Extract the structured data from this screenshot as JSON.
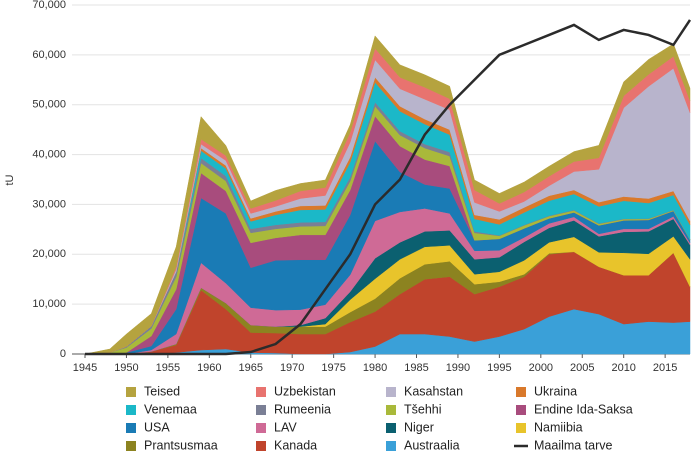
{
  "chart_data": {
    "type": "stacked-area",
    "ylabel": "tU",
    "x": [
      1945,
      1948,
      1950,
      1953,
      1956,
      1959,
      1962,
      1965,
      1968,
      1971,
      1974,
      1977,
      1980,
      1983,
      1986,
      1989,
      1992,
      1995,
      1998,
      2001,
      2004,
      2007,
      2010,
      2013,
      2016,
      2018
    ],
    "xlim": [
      1945,
      2018
    ],
    "xticks": [
      1945,
      1950,
      1955,
      1960,
      1965,
      1970,
      1975,
      1980,
      1985,
      1990,
      1995,
      2000,
      2005,
      2010,
      2015
    ],
    "ylim": [
      0,
      70000
    ],
    "yticks": [
      0,
      {
        "value": 10000,
        "label": "10,000"
      },
      {
        "value": 20000,
        "label": "20,000"
      },
      {
        "value": 30000,
        "label": "30,000"
      },
      {
        "value": 40000,
        "label": "40,000"
      },
      {
        "value": 50000,
        "label": "50,000"
      },
      {
        "value": 60000,
        "label": "60,000"
      },
      {
        "value": 70000,
        "label": "70,000"
      }
    ],
    "grid": true,
    "series": [
      {
        "name": "Austraalia",
        "color": "#3aa0d8",
        "values": [
          0,
          0,
          0,
          0,
          300,
          800,
          1000,
          300,
          200,
          0,
          0,
          400,
          1500,
          4000,
          4000,
          3500,
          2500,
          3500,
          5000,
          7500,
          9000,
          8000,
          6000,
          6500,
          6300,
          6500
        ]
      },
      {
        "name": "Kanada",
        "color": "#c0442c",
        "values": [
          0,
          0,
          0,
          500,
          1500,
          12000,
          8000,
          4000,
          4000,
          4000,
          4000,
          6000,
          7000,
          8000,
          11000,
          12000,
          9500,
          10000,
          10500,
          12500,
          11500,
          9500,
          9800,
          9300,
          14000,
          7000
        ]
      },
      {
        "name": "Prantsusmaa",
        "color": "#8c8320",
        "values": [
          0,
          0,
          0,
          0,
          200,
          500,
          1200,
          1500,
          1300,
          1500,
          1500,
          2000,
          2600,
          3200,
          3000,
          3100,
          2000,
          1000,
          500,
          200,
          0,
          0,
          0,
          0,
          0,
          0
        ]
      },
      {
        "name": "Namiibia",
        "color": "#e8c42b",
        "values": [
          0,
          0,
          0,
          0,
          0,
          0,
          0,
          0,
          0,
          0,
          500,
          2500,
          4000,
          3800,
          3500,
          3200,
          2000,
          2000,
          2800,
          2200,
          3000,
          2900,
          4500,
          4300,
          3300,
          5500
        ]
      },
      {
        "name": "Niger",
        "color": "#0b6070",
        "values": [
          0,
          0,
          0,
          0,
          0,
          0,
          0,
          0,
          0,
          300,
          1200,
          1600,
          4100,
          3400,
          3100,
          3000,
          3000,
          2900,
          3700,
          2900,
          3300,
          3200,
          4200,
          4500,
          3500,
          2900
        ]
      },
      {
        "name": "LAV",
        "color": "#cf6a96",
        "values": [
          0,
          0,
          0,
          300,
          2000,
          5000,
          4000,
          3500,
          3300,
          3100,
          2700,
          3400,
          7500,
          6100,
          4600,
          3400,
          1700,
          1400,
          900,
          900,
          700,
          500,
          600,
          500,
          500,
          400
        ]
      },
      {
        "name": "USA",
        "color": "#1a7bb5",
        "values": [
          0,
          0,
          300,
          800,
          5000,
          13000,
          14000,
          8000,
          10000,
          10000,
          9000,
          12000,
          16000,
          8000,
          4800,
          5000,
          2100,
          2300,
          1800,
          1000,
          900,
          1700,
          1700,
          1800,
          1100,
          600
        ]
      },
      {
        "name": "Endine Ida-Saksa",
        "color": "#a84c7d",
        "values": [
          0,
          0,
          0,
          2000,
          4000,
          5000,
          4500,
          5000,
          4500,
          5000,
          5000,
          5000,
          5000,
          5200,
          5000,
          4500,
          0,
          0,
          0,
          0,
          0,
          0,
          0,
          0,
          0,
          0
        ]
      },
      {
        "name": "Tšehhi",
        "color": "#a9b93a",
        "values": [
          0,
          300,
          1000,
          1500,
          2500,
          2000,
          2000,
          2000,
          1800,
          1700,
          1800,
          1800,
          2000,
          2200,
          2300,
          2000,
          1500,
          600,
          600,
          450,
          400,
          300,
          250,
          200,
          150,
          100
        ]
      },
      {
        "name": "Rumeenia",
        "color": "#7a7f95",
        "values": [
          0,
          0,
          200,
          500,
          1000,
          1000,
          1000,
          800,
          800,
          800,
          800,
          800,
          800,
          800,
          800,
          800,
          300,
          100,
          100,
          100,
          100,
          100,
          80,
          80,
          50,
          0
        ]
      },
      {
        "name": "Venemaa",
        "color": "#1bb8c8",
        "values": [
          0,
          0,
          0,
          0,
          0,
          1500,
          1500,
          1500,
          2000,
          2500,
          2500,
          3000,
          4000,
          4000,
          4000,
          3500,
          2500,
          2200,
          2500,
          3000,
          3200,
          3400,
          3600,
          3100,
          3000,
          2900
        ]
      },
      {
        "name": "Ukraina",
        "color": "#d9792b",
        "values": [
          0,
          0,
          0,
          0,
          0,
          500,
          600,
          600,
          700,
          800,
          800,
          1000,
          1000,
          1000,
          1000,
          1000,
          800,
          1000,
          1000,
          1000,
          800,
          850,
          850,
          900,
          800,
          800
        ]
      },
      {
        "name": "Kasahstan",
        "color": "#b8b4cc",
        "values": [
          0,
          0,
          0,
          0,
          500,
          800,
          1000,
          1000,
          1000,
          1500,
          2000,
          3000,
          3500,
          3500,
          4000,
          4000,
          2500,
          1600,
          1200,
          2000,
          3700,
          6600,
          17800,
          22500,
          24600,
          21700
        ]
      },
      {
        "name": "Uzbekistan",
        "color": "#e8736f",
        "values": [
          0,
          0,
          0,
          0,
          500,
          1000,
          1000,
          1000,
          1200,
          1500,
          1600,
          2000,
          2300,
          2300,
          2400,
          2200,
          2500,
          1600,
          1900,
          1900,
          2000,
          2300,
          2400,
          2400,
          2400,
          2400
        ]
      },
      {
        "name": "Teised",
        "color": "#b5a33f",
        "values": [
          0,
          700,
          2500,
          2500,
          4000,
          4500,
          2000,
          1500,
          2000,
          1500,
          1500,
          1500,
          2500,
          2500,
          2500,
          2500,
          2000,
          2000,
          2000,
          2000,
          2000,
          2500,
          2800,
          3000,
          2500,
          2500
        ]
      }
    ],
    "line": {
      "name": "Maailma tarve",
      "color": "#2b2b2b",
      "values": [
        0,
        0,
        0,
        0,
        0,
        0,
        0,
        400,
        2000,
        6000,
        13000,
        20000,
        30000,
        35000,
        44000,
        50000,
        55000,
        60000,
        62000,
        64000,
        66000,
        63000,
        65000,
        64000,
        62000,
        67000
      ]
    }
  }
}
